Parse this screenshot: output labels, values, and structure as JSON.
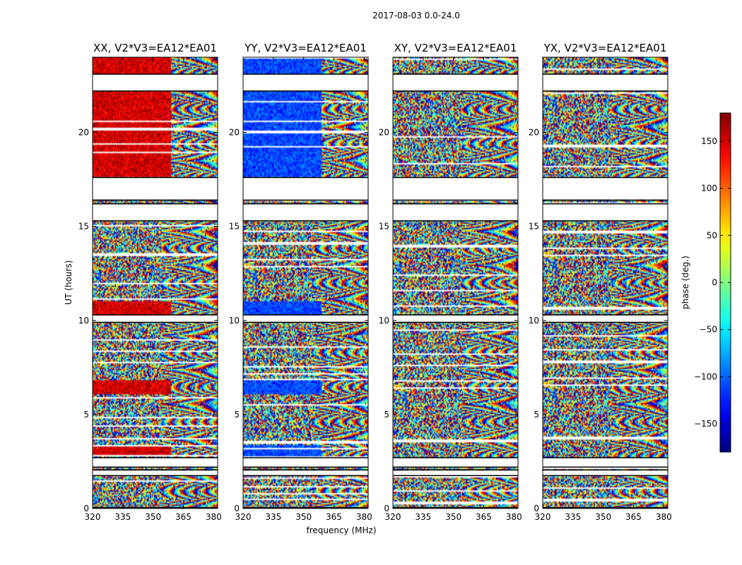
{
  "chart_data": {
    "type": "heatmap",
    "suptitle": "2017-08-03 0.0-24.0",
    "xlabel": "frequency (MHz)",
    "ylabel": "UT (hours)",
    "xlim": [
      320,
      382
    ],
    "ylim": [
      0,
      24
    ],
    "xticks": [
      320,
      335,
      350,
      365,
      380
    ],
    "yticks": [
      0,
      5,
      10,
      15,
      20
    ],
    "panels": [
      {
        "name": "xx",
        "title": "XX, V2*V3=EA12*EA01",
        "phase_bias_deg": 150,
        "coherent_bands": [
          [
            10.3,
            11.0
          ],
          [
            17.6,
            24.0
          ],
          [
            2.8,
            3.4
          ],
          [
            6.1,
            6.8
          ]
        ]
      },
      {
        "name": "yy",
        "title": "YY, V2*V3=EA12*EA01",
        "phase_bias_deg": -110,
        "coherent_bands": [
          [
            10.3,
            11.0
          ],
          [
            17.6,
            24.0
          ],
          [
            2.8,
            3.4
          ],
          [
            6.1,
            6.8
          ]
        ]
      },
      {
        "name": "xy",
        "title": "XY, V2*V3=EA12*EA01",
        "phase_bias_deg": null,
        "coherent_bands": []
      },
      {
        "name": "yx",
        "title": "YX, V2*V3=EA12*EA01",
        "phase_bias_deg": null,
        "coherent_bands": []
      }
    ],
    "flagged_hours": [
      [
        16.4,
        17.6
      ],
      [
        15.3,
        16.2
      ],
      [
        22.2,
        23.1
      ],
      [
        9.9,
        10.3
      ],
      [
        1.75,
        2.05
      ],
      [
        2.2,
        2.7
      ],
      [
        0.0,
        0.05
      ]
    ],
    "colorbar": {
      "label": "phase (deg.)",
      "range": [
        -180,
        180
      ],
      "ticks": [
        -150,
        -100,
        -50,
        0,
        50,
        100,
        150
      ],
      "tick_labels": [
        "−150",
        "−100",
        "−50",
        "0",
        "50",
        "100",
        "150"
      ],
      "colormap": "jet"
    }
  }
}
